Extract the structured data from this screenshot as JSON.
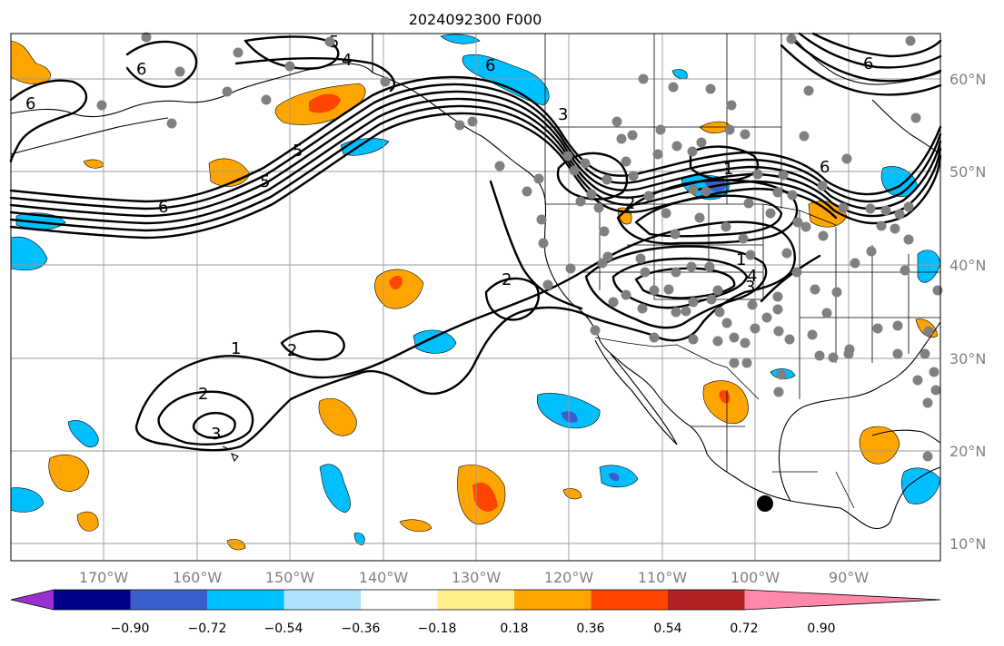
{
  "title": "2024092300 F000",
  "latitude_labels": [
    "60°N",
    "50°N",
    "40°N",
    "30°N",
    "20°N",
    "10°N"
  ],
  "longitude_labels": [
    "170°W",
    "160°W",
    "150°W",
    "140°W",
    "130°W",
    "120°W",
    "110°W",
    "100°W",
    "90°W"
  ],
  "colorbar": {
    "tick_labels": [
      "−0.90",
      "−0.72",
      "−0.54",
      "−0.36",
      "−0.18",
      "0.18",
      "0.36",
      "0.54",
      "0.72",
      "0.90"
    ],
    "colors": [
      "#9b30d0",
      "#00008b",
      "#3a5fcd",
      "#00bfff",
      "#b0e2ff",
      "#ffffff",
      "#fff08a",
      "#ffa500",
      "#ff4500",
      "#b22222",
      "#ff88aa"
    ]
  },
  "contour_labels": [
    "6",
    "6",
    "4",
    "6",
    "5",
    "5",
    "6",
    "6",
    "2",
    "2",
    "1",
    "2",
    "1",
    "3",
    "4",
    "5",
    "2",
    "1",
    "3",
    "6",
    "3"
  ],
  "station_marker_color": "#808080",
  "highlight_marker_color": "#000000",
  "colors": {
    "positive": "#ffa500",
    "strong_positive": "#ff4500",
    "negative": "#00bfff",
    "strong_negative": "#3a5fcd"
  }
}
